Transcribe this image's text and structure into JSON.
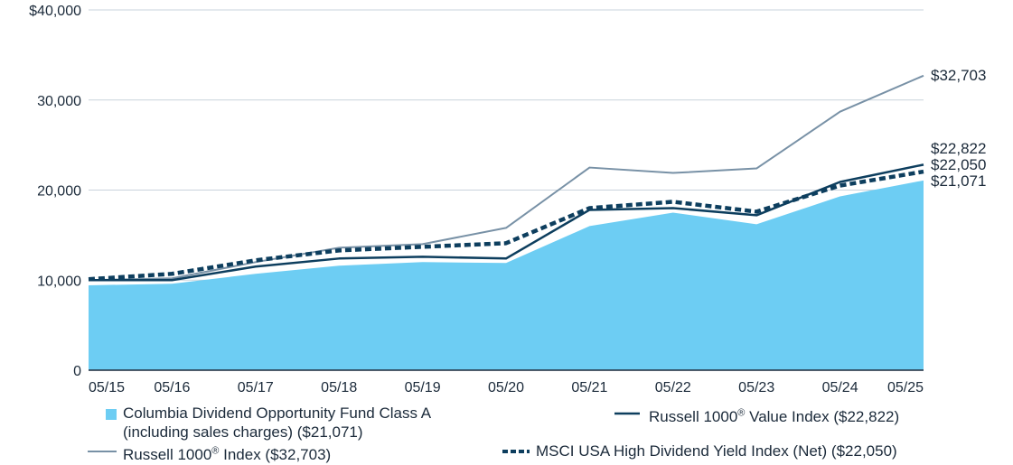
{
  "chart_data": {
    "type": "area",
    "categories": [
      "05/15",
      "05/16",
      "05/17",
      "05/18",
      "05/19",
      "05/20",
      "05/21",
      "05/22",
      "05/23",
      "05/24",
      "05/25"
    ],
    "ylim": [
      0,
      40000
    ],
    "yticks": [
      0,
      10000,
      20000,
      30000,
      40000
    ],
    "ytick_labels": [
      "0",
      "10,000",
      "20,000",
      "30,000",
      "$40,000"
    ],
    "grid": true,
    "legend_position": "bottom",
    "series": [
      {
        "key": "fund",
        "name": "Columbia Dividend Opportunity Fund Class A (including sales charges) ($21,071)",
        "legend_line1": "Columbia Dividend Opportunity Fund Class A",
        "legend_line2": "(including sales charges) ($21,071)",
        "style": "area",
        "color": "#6dcdf3",
        "end_label": "$21,071",
        "values": [
          9425,
          9600,
          10700,
          11600,
          12000,
          11900,
          16000,
          17500,
          16200,
          19300,
          21071
        ]
      },
      {
        "key": "r1000v",
        "name": "Russell 1000® Value Index ($22,822)",
        "legend_before": "Russell 1000",
        "legend_sup": "®",
        "legend_after": " Value Index ($22,822)",
        "style": "solid",
        "color": "#0d3e5e",
        "end_label": "$22,822",
        "values": [
          10000,
          10000,
          11500,
          12400,
          12600,
          12400,
          17800,
          18000,
          17200,
          20900,
          22822
        ]
      },
      {
        "key": "r1000",
        "name": "Russell 1000® Index ($32,703)",
        "legend_before": "Russell 1000",
        "legend_sup": "®",
        "legend_after": " Index ($32,703)",
        "style": "solid",
        "color": "#7891a6",
        "end_label": "$32,703",
        "values": [
          10000,
          10200,
          12000,
          13600,
          14000,
          15800,
          22500,
          21900,
          22400,
          28700,
          32703
        ]
      },
      {
        "key": "msci",
        "name": "MSCI USA High Dividend Yield Index (Net) ($22,050)",
        "legend_text": "MSCI USA High Dividend Yield Index (Net) ($22,050)",
        "style": "dashed",
        "color": "#0d3e5e",
        "end_label": "$22,050",
        "values": [
          10100,
          10700,
          12200,
          13300,
          13700,
          14100,
          18000,
          18700,
          17600,
          20500,
          22050
        ]
      }
    ]
  }
}
